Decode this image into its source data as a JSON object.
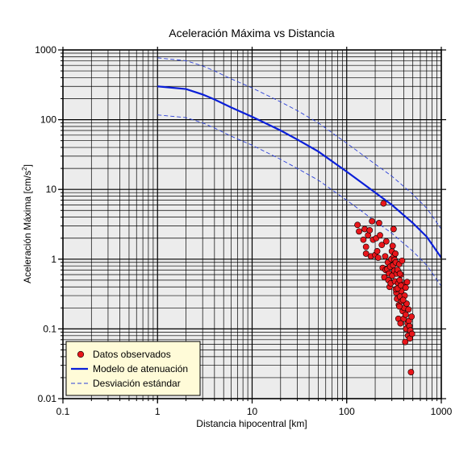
{
  "chart_data": {
    "type": "scatter",
    "title": "Aceleración Máxima vs Distancia",
    "xlabel": "Distancia hipocentral [km]",
    "ylabel": "Aceleración Máxima [cm/s",
    "ylabel_sup": "2",
    "ylabel_end": "]",
    "x_scale": "log",
    "y_scale": "log",
    "xlim": [
      0.1,
      1000
    ],
    "ylim": [
      0.01,
      1000
    ],
    "x_ticks": [
      {
        "value": 0.1,
        "label": "0.1"
      },
      {
        "value": 1,
        "label": "1"
      },
      {
        "value": 10,
        "label": "10"
      },
      {
        "value": 100,
        "label": "100"
      },
      {
        "value": 1000,
        "label": "1000"
      }
    ],
    "y_ticks": [
      {
        "value": 0.01,
        "label": "0.01"
      },
      {
        "value": 0.1,
        "label": "0.1"
      },
      {
        "value": 1,
        "label": "1"
      },
      {
        "value": 10,
        "label": "10"
      },
      {
        "value": 100,
        "label": "100"
      },
      {
        "value": 1000,
        "label": "1000"
      }
    ],
    "grid": true,
    "legend_position": "bottom-left",
    "colors": {
      "plot_background": "#ececec",
      "grid": "#000000",
      "points_fill": "#e8161b",
      "points_stroke": "#000000",
      "model": "#0a1fd8",
      "deviation": "#2a3fd8",
      "legend_background": "#fffbd8"
    },
    "legend": [
      {
        "label": "Datos observados",
        "kind": "marker"
      },
      {
        "label": "Modelo de atenuación",
        "kind": "solid"
      },
      {
        "label": "Desviación estándar",
        "kind": "dashed"
      }
    ],
    "series": [
      {
        "name": "Modelo de atenuación",
        "style": "solid",
        "points": [
          [
            1,
            300
          ],
          [
            2,
            275
          ],
          [
            3,
            230
          ],
          [
            4,
            195
          ],
          [
            6,
            150
          ],
          [
            10,
            110
          ],
          [
            20,
            70
          ],
          [
            30,
            52
          ],
          [
            50,
            35
          ],
          [
            100,
            18
          ],
          [
            200,
            9
          ],
          [
            300,
            6
          ],
          [
            500,
            3.3
          ],
          [
            700,
            2.1
          ],
          [
            1000,
            1.05
          ]
        ]
      },
      {
        "name": "Desviación estándar superior",
        "style": "dashed",
        "points": [
          [
            1,
            770
          ],
          [
            2,
            700
          ],
          [
            3,
            590
          ],
          [
            4,
            500
          ],
          [
            6,
            385
          ],
          [
            10,
            285
          ],
          [
            20,
            180
          ],
          [
            30,
            135
          ],
          [
            50,
            90
          ],
          [
            100,
            46
          ],
          [
            200,
            23
          ],
          [
            300,
            15.5
          ],
          [
            500,
            8.5
          ],
          [
            700,
            5.4
          ],
          [
            1000,
            2.7
          ]
        ]
      },
      {
        "name": "Desviación estándar inferior",
        "style": "dashed",
        "points": [
          [
            1,
            117
          ],
          [
            2,
            107
          ],
          [
            3,
            90
          ],
          [
            4,
            76
          ],
          [
            6,
            58
          ],
          [
            10,
            43
          ],
          [
            20,
            27
          ],
          [
            30,
            20
          ],
          [
            50,
            13.6
          ],
          [
            100,
            7
          ],
          [
            200,
            3.5
          ],
          [
            300,
            2.35
          ],
          [
            500,
            1.3
          ],
          [
            700,
            0.82
          ],
          [
            1000,
            0.41
          ]
        ]
      },
      {
        "name": "Datos observados",
        "style": "marker",
        "points": [
          [
            130,
            3.1
          ],
          [
            135,
            2.5
          ],
          [
            150,
            1.9
          ],
          [
            155,
            2.7
          ],
          [
            160,
            1.5
          ],
          [
            160,
            1.2
          ],
          [
            168,
            2.2
          ],
          [
            175,
            2.6
          ],
          [
            180,
            1.1
          ],
          [
            185,
            3.5
          ],
          [
            190,
            1.9
          ],
          [
            200,
            1.15
          ],
          [
            205,
            2.0
          ],
          [
            210,
            1.3
          ],
          [
            215,
            1.05
          ],
          [
            220,
            3.3
          ],
          [
            225,
            2.2
          ],
          [
            235,
            1.6
          ],
          [
            240,
            0.75
          ],
          [
            245,
            6.3
          ],
          [
            250,
            0.55
          ],
          [
            255,
            1.1
          ],
          [
            258,
            0.7
          ],
          [
            262,
            1.8
          ],
          [
            268,
            0.72
          ],
          [
            272,
            0.9
          ],
          [
            276,
            0.5
          ],
          [
            280,
            0.62
          ],
          [
            284,
            0.4
          ],
          [
            288,
            0.78
          ],
          [
            292,
            0.45
          ],
          [
            296,
            1.0
          ],
          [
            300,
            1.3
          ],
          [
            303,
            0.58
          ],
          [
            306,
            1.55
          ],
          [
            310,
            0.82
          ],
          [
            313,
            2.7
          ],
          [
            315,
            1.1
          ],
          [
            318,
            0.68
          ],
          [
            321,
            0.98
          ],
          [
            324,
            0.48
          ],
          [
            327,
            1.2
          ],
          [
            330,
            0.9
          ],
          [
            334,
            0.33
          ],
          [
            337,
            0.62
          ],
          [
            340,
            0.27
          ],
          [
            345,
            0.7
          ],
          [
            350,
            0.45
          ],
          [
            352,
            0.14
          ],
          [
            356,
            0.22
          ],
          [
            360,
            0.85
          ],
          [
            363,
            0.5
          ],
          [
            366,
            0.29
          ],
          [
            370,
            0.12
          ],
          [
            374,
            0.6
          ],
          [
            378,
            0.35
          ],
          [
            382,
            0.25
          ],
          [
            385,
            0.95
          ],
          [
            390,
            0.18
          ],
          [
            395,
            0.43
          ],
          [
            400,
            0.14
          ],
          [
            405,
            0.2
          ],
          [
            410,
            0.3
          ],
          [
            415,
            0.065
          ],
          [
            420,
            0.16
          ],
          [
            425,
            0.1
          ],
          [
            430,
            0.23
          ],
          [
            435,
            0.47
          ],
          [
            440,
            0.12
          ],
          [
            445,
            0.08
          ],
          [
            450,
            0.19
          ],
          [
            455,
            0.13
          ],
          [
            460,
            0.11
          ],
          [
            465,
            0.073
          ],
          [
            470,
            0.095
          ],
          [
            478,
            0.024
          ],
          [
            485,
            0.15
          ],
          [
            490,
            0.085
          ],
          [
            360,
            0.21
          ],
          [
            330,
            0.37
          ],
          [
            345,
            0.38
          ],
          [
            365,
            0.62
          ],
          [
            375,
            0.42
          ],
          [
            395,
            0.26
          ],
          [
            420,
            0.39
          ]
        ]
      }
    ]
  }
}
